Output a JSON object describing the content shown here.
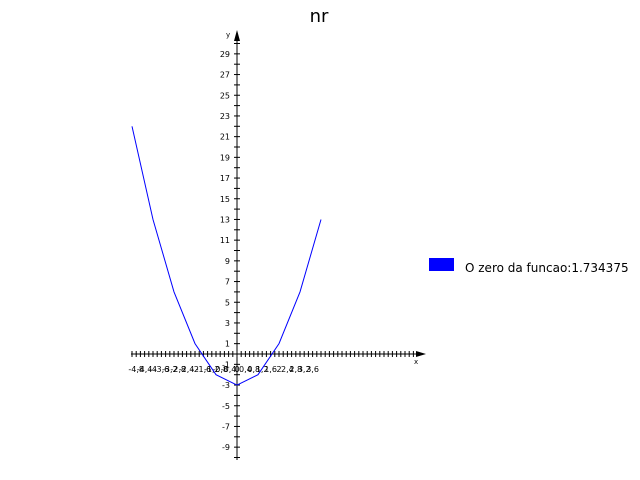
{
  "chart_data": {
    "type": "line",
    "title": "nr",
    "xlabel": "x",
    "ylabel": "y",
    "xlim": [
      -5,
      4.4
    ],
    "ylim": [
      -10.5,
      31
    ],
    "legend_position": "right",
    "series": [
      {
        "name": "O zero da funcao:1.734375",
        "color": "#0000ff",
        "x": [
          -5,
          -4,
          -3,
          -2,
          -1,
          0,
          1,
          2,
          3,
          4
        ],
        "y": [
          22,
          13,
          6,
          1,
          -2,
          -3,
          -2,
          1,
          6,
          13
        ]
      }
    ],
    "x_ticks": [
      {
        "value": -4.8,
        "label": "-4,8"
      },
      {
        "value": -4.4,
        "label": "-4,4"
      },
      {
        "value": -4.0,
        "label": "-4"
      },
      {
        "value": -3.6,
        "label": "-3,6"
      },
      {
        "value": -3.2,
        "label": "-3,2"
      },
      {
        "value": -2.8,
        "label": "-2,8"
      },
      {
        "value": -2.4,
        "label": "-2,4"
      },
      {
        "value": -2.0,
        "label": "-2"
      },
      {
        "value": -1.6,
        "label": "-1,6"
      },
      {
        "value": -1.2,
        "label": "-1,2"
      },
      {
        "value": -0.8,
        "label": "-0,8"
      },
      {
        "value": -0.4,
        "label": "-0,4"
      },
      {
        "value": 0.0,
        "label": "0"
      },
      {
        "value": 0.4,
        "label": "0,4"
      },
      {
        "value": 0.8,
        "label": "0,8"
      },
      {
        "value": 1.2,
        "label": "1,2"
      },
      {
        "value": 1.6,
        "label": "1,6"
      },
      {
        "value": 2.0,
        "label": "2"
      },
      {
        "value": 2.4,
        "label": "2,4"
      },
      {
        "value": 2.8,
        "label": "2,8"
      },
      {
        "value": 3.2,
        "label": "3,2"
      },
      {
        "value": 3.6,
        "label": "3,6"
      }
    ],
    "y_ticks": [
      {
        "value": 29,
        "label": "29"
      },
      {
        "value": 27,
        "label": "27"
      },
      {
        "value": 25,
        "label": "25"
      },
      {
        "value": 23,
        "label": "23"
      },
      {
        "value": 21,
        "label": "21"
      },
      {
        "value": 19,
        "label": "19"
      },
      {
        "value": 17,
        "label": "17"
      },
      {
        "value": 15,
        "label": "15"
      },
      {
        "value": 13,
        "label": "13"
      },
      {
        "value": 11,
        "label": "11"
      },
      {
        "value": 9,
        "label": "9"
      },
      {
        "value": 7,
        "label": "7"
      },
      {
        "value": 5,
        "label": "5"
      },
      {
        "value": 3,
        "label": "3"
      },
      {
        "value": 1,
        "label": "1"
      },
      {
        "value": -1,
        "label": "-1"
      },
      {
        "value": -3,
        "label": "-3"
      },
      {
        "value": -5,
        "label": "-5"
      },
      {
        "value": -7,
        "label": "-7"
      },
      {
        "value": -9,
        "label": "-9"
      }
    ],
    "x_minor_step": 0.2,
    "y_minor_step": 1,
    "axis_color": "#000000",
    "grid": false
  }
}
